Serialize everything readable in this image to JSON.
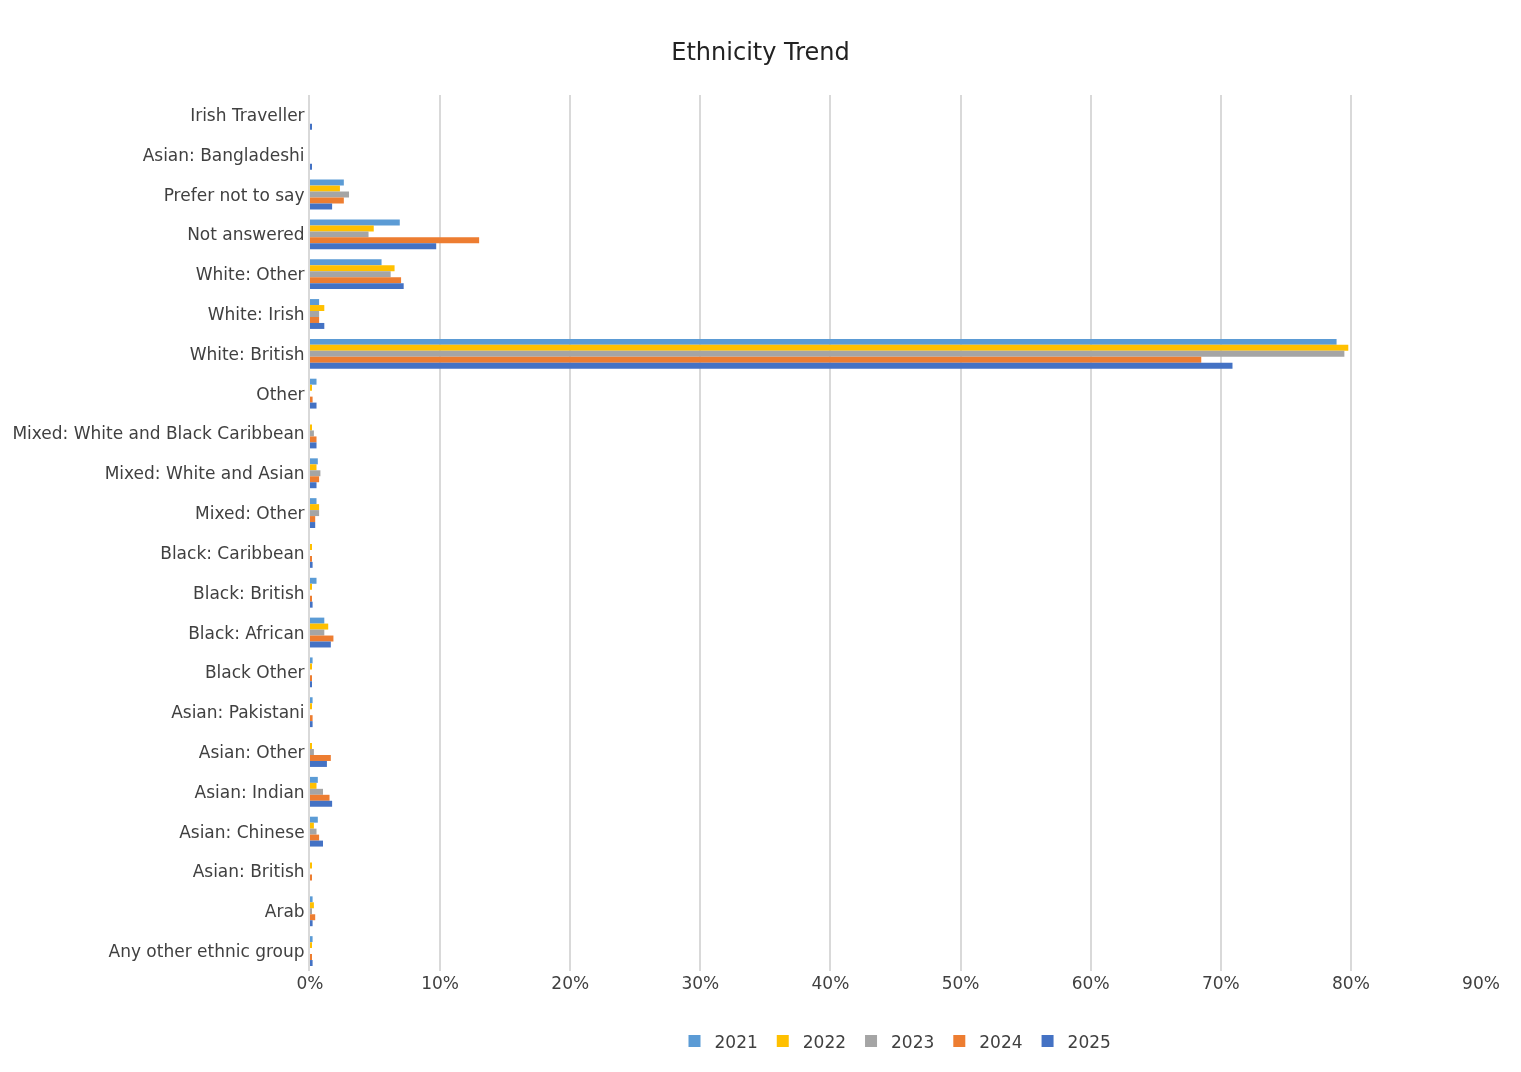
{
  "chart_data": {
    "type": "bar",
    "orientation": "horizontal",
    "title": "Ethnicity Trend",
    "categories": [
      "Irish Traveller",
      "Asian: Bangladeshi",
      "Prefer not to say",
      "Not answered",
      "White: Other",
      "White: Irish",
      "White: British",
      "Other",
      "Mixed: White and Black Caribbean",
      "Mixed: White and Asian",
      "Mixed: Other",
      "Black: Caribbean",
      "Black: British",
      "Black: African",
      "Black Other",
      "Asian: Pakistani",
      "Asian: Other",
      "Asian: Indian",
      "Asian: Chinese",
      "Asian: British",
      "Arab",
      "Any other ethnic group"
    ],
    "series": [
      {
        "name": "2021",
        "color": "#5b9bd5",
        "values": [
          0,
          0,
          2.6,
          6.9,
          5.5,
          0.7,
          78.9,
          0.5,
          0,
          0.6,
          0.5,
          0,
          0.5,
          1.1,
          0.2,
          0.2,
          0,
          0.6,
          0.6,
          0,
          0.2,
          0.2
        ]
      },
      {
        "name": "2022",
        "color": "#ffc000",
        "values": [
          0,
          0,
          2.3,
          4.9,
          6.5,
          1.1,
          79.8,
          0.1,
          0.1,
          0.5,
          0.7,
          0.1,
          0.1,
          1.4,
          0.1,
          0.1,
          0.1,
          0.5,
          0.3,
          0.1,
          0.3,
          0.1
        ]
      },
      {
        "name": "2023",
        "color": "#a5a5a5",
        "values": [
          0,
          0,
          3.0,
          4.5,
          6.2,
          0.7,
          79.5,
          0,
          0.3,
          0.8,
          0.7,
          0,
          0,
          1.1,
          0,
          0,
          0.3,
          1.0,
          0.5,
          0,
          0.1,
          0
        ]
      },
      {
        "name": "2024",
        "color": "#ed7d31",
        "values": [
          0,
          0,
          2.6,
          13.0,
          7.0,
          0.7,
          68.5,
          0.2,
          0.5,
          0.7,
          0.4,
          0.1,
          0.1,
          1.8,
          0.1,
          0.2,
          1.6,
          1.5,
          0.7,
          0.1,
          0.4,
          0.1
        ]
      },
      {
        "name": "2025",
        "color": "#4472c4",
        "values": [
          0.1,
          0.1,
          1.7,
          9.7,
          7.2,
          1.1,
          70.9,
          0.5,
          0.5,
          0.5,
          0.4,
          0.2,
          0.2,
          1.6,
          0.1,
          0.2,
          1.3,
          1.7,
          1.0,
          0,
          0.2,
          0.2
        ]
      }
    ],
    "xlim": [
      0,
      90
    ],
    "xticks": [
      {
        "value": 0,
        "label": "0%"
      },
      {
        "value": 10,
        "label": "10%"
      },
      {
        "value": 20,
        "label": "20%"
      },
      {
        "value": 30,
        "label": "30%"
      },
      {
        "value": 40,
        "label": "40%"
      },
      {
        "value": 50,
        "label": "50%"
      },
      {
        "value": 60,
        "label": "60%"
      },
      {
        "value": 70,
        "label": "70%"
      },
      {
        "value": 80,
        "label": "80%"
      },
      {
        "value": 90,
        "label": "90%"
      }
    ],
    "grid": "x",
    "legend": "bottom"
  }
}
